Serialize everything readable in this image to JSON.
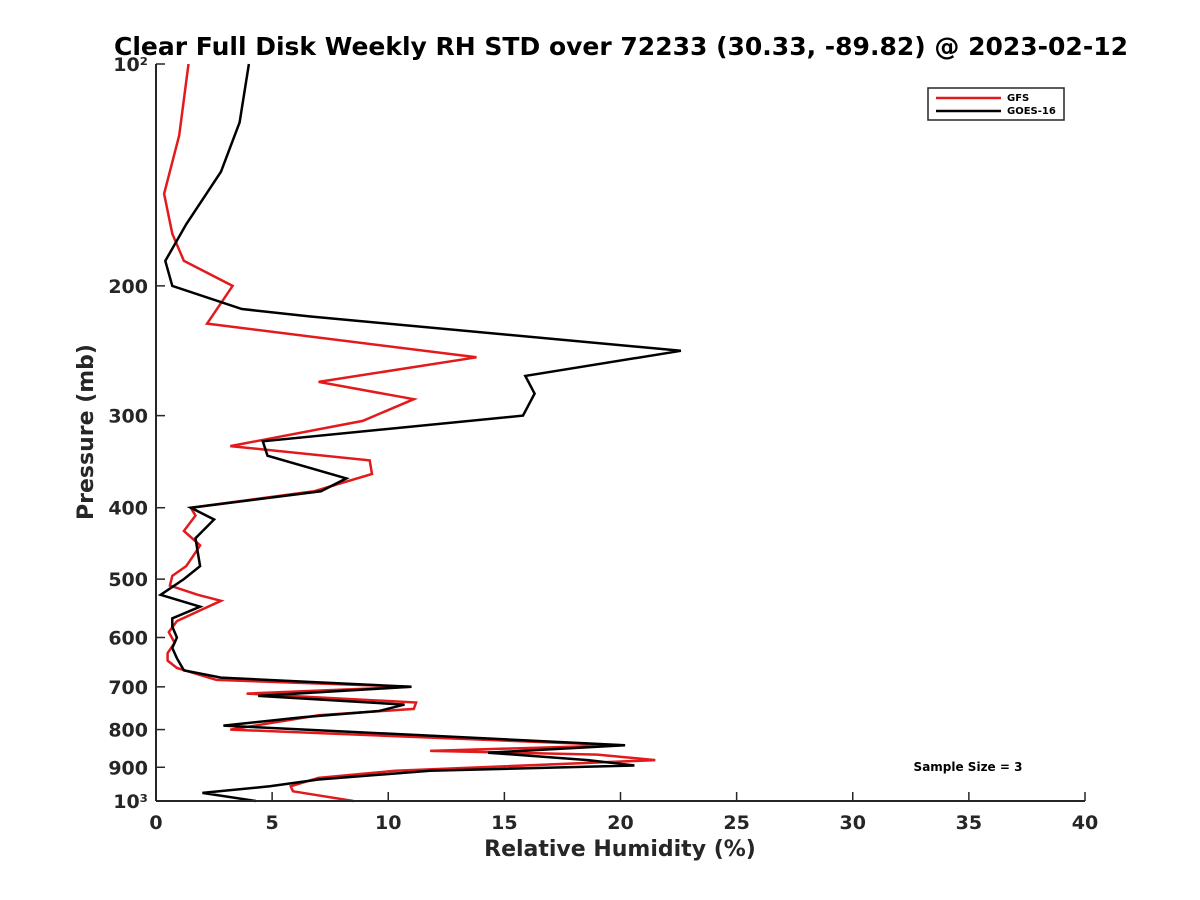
{
  "chart_data": {
    "type": "line",
    "title": "Clear Full Disk Weekly RH STD over 72233 (30.33, -89.82) @ 2023-02-12",
    "xlabel": "Relative Humidity (%)",
    "ylabel": "Pressure (mb)",
    "xlim": [
      0,
      40
    ],
    "ylim": [
      100,
      1000
    ],
    "y_scale": "log",
    "y_reversed": true,
    "x_ticks": [
      0,
      5,
      10,
      15,
      20,
      25,
      30,
      35,
      40
    ],
    "x_tick_labels": [
      "0",
      "5",
      "10",
      "15",
      "20",
      "25",
      "30",
      "35",
      "40"
    ],
    "y_ticks": [
      100,
      200,
      300,
      400,
      500,
      600,
      700,
      800,
      900,
      1000
    ],
    "y_tick_labels": [
      "10²",
      "200",
      "300",
      "400",
      "500",
      "600",
      "700",
      "800",
      "900",
      "10³"
    ],
    "legend_position": "top-right",
    "grid": false,
    "annotation": "Sample Size = 3",
    "series": [
      {
        "name": "GFS",
        "color": "#e31a1c",
        "points": [
          [
            1.4,
            100
          ],
          [
            1.0,
            125
          ],
          [
            0.35,
            150
          ],
          [
            0.7,
            170
          ],
          [
            1.2,
            185
          ],
          [
            3.3,
            200
          ],
          [
            2.2,
            225
          ],
          [
            13.8,
            250
          ],
          [
            7.0,
            270
          ],
          [
            11.1,
            285
          ],
          [
            8.9,
            305
          ],
          [
            3.2,
            330
          ],
          [
            9.2,
            345
          ],
          [
            9.3,
            360
          ],
          [
            6.8,
            380
          ],
          [
            1.5,
            400
          ],
          [
            1.7,
            410
          ],
          [
            1.2,
            430
          ],
          [
            1.9,
            450
          ],
          [
            1.6,
            465
          ],
          [
            1.3,
            480
          ],
          [
            0.7,
            495
          ],
          [
            0.6,
            510
          ],
          [
            1.8,
            525
          ],
          [
            2.8,
            535
          ],
          [
            1.7,
            555
          ],
          [
            0.9,
            570
          ],
          [
            0.55,
            590
          ],
          [
            0.8,
            610
          ],
          [
            0.5,
            630
          ],
          [
            0.5,
            645
          ],
          [
            0.9,
            660
          ],
          [
            2.6,
            685
          ],
          [
            11.0,
            700
          ],
          [
            3.9,
            715
          ],
          [
            11.2,
            735
          ],
          [
            11.1,
            750
          ],
          [
            7.0,
            765
          ],
          [
            3.2,
            800
          ],
          [
            20.0,
            840
          ],
          [
            11.8,
            855
          ],
          [
            19.0,
            865
          ],
          [
            21.5,
            880
          ],
          [
            14.0,
            900
          ],
          [
            10.3,
            910
          ],
          [
            7.0,
            930
          ],
          [
            5.8,
            955
          ],
          [
            5.9,
            970
          ],
          [
            8.5,
            1000
          ]
        ]
      },
      {
        "name": "GOES-16",
        "color": "#000000",
        "points": [
          [
            4.0,
            100
          ],
          [
            3.6,
            120
          ],
          [
            2.8,
            140
          ],
          [
            1.3,
            165
          ],
          [
            0.4,
            185
          ],
          [
            0.7,
            200
          ],
          [
            3.7,
            215
          ],
          [
            6.6,
            220
          ],
          [
            22.6,
            245
          ],
          [
            15.9,
            265
          ],
          [
            16.3,
            280
          ],
          [
            15.8,
            300
          ],
          [
            4.6,
            325
          ],
          [
            4.8,
            340
          ],
          [
            8.2,
            365
          ],
          [
            7.1,
            380
          ],
          [
            1.5,
            400
          ],
          [
            2.5,
            415
          ],
          [
            1.7,
            440
          ],
          [
            1.8,
            460
          ],
          [
            1.9,
            480
          ],
          [
            1.2,
            500
          ],
          [
            0.2,
            525
          ],
          [
            1.9,
            545
          ],
          [
            0.7,
            565
          ],
          [
            0.7,
            580
          ],
          [
            0.9,
            600
          ],
          [
            0.7,
            620
          ],
          [
            0.9,
            640
          ],
          [
            1.2,
            665
          ],
          [
            2.8,
            680
          ],
          [
            11.0,
            700
          ],
          [
            4.4,
            720
          ],
          [
            10.7,
            740
          ],
          [
            9.6,
            755
          ],
          [
            6.3,
            770
          ],
          [
            2.9,
            790
          ],
          [
            20.2,
            840
          ],
          [
            14.3,
            860
          ],
          [
            18.6,
            880
          ],
          [
            20.6,
            895
          ],
          [
            11.8,
            910
          ],
          [
            7.0,
            935
          ],
          [
            4.9,
            955
          ],
          [
            2.0,
            975
          ],
          [
            4.3,
            1000
          ]
        ]
      }
    ]
  }
}
